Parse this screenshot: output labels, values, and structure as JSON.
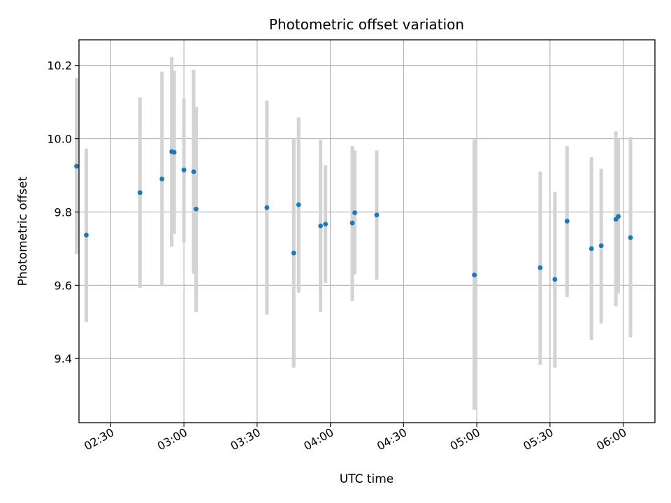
{
  "chart_data": {
    "type": "scatter",
    "title": "Photometric offset variation",
    "xlabel": "UTC time",
    "ylabel": "Photometric offset",
    "x_unit": "UTC time (HH:MM)",
    "xlim": [
      "02:17",
      "06:13"
    ],
    "ylim": [
      9.225,
      10.27
    ],
    "x_ticks": [
      "02:30",
      "03:00",
      "03:30",
      "04:00",
      "04:30",
      "05:00",
      "05:30",
      "06:00"
    ],
    "y_ticks": [
      9.4,
      9.6,
      9.8,
      10.0,
      10.2
    ],
    "y_tick_labels": [
      "9.4",
      "9.6",
      "9.8",
      "10.0",
      "10.2"
    ],
    "grid": true,
    "colors": {
      "point": "#1f77b4",
      "errorbar": "#d3d3d3",
      "grid": "#b0b0b0"
    },
    "points": [
      {
        "x": "02:16",
        "y": 9.925,
        "err_low": 9.685,
        "err_high": 10.165
      },
      {
        "x": "02:20",
        "y": 9.737,
        "err_low": 9.5,
        "err_high": 9.973
      },
      {
        "x": "02:42",
        "y": 9.853,
        "err_low": 9.593,
        "err_high": 10.113
      },
      {
        "x": "02:51",
        "y": 9.89,
        "err_low": 9.597,
        "err_high": 10.183
      },
      {
        "x": "02:55",
        "y": 9.965,
        "err_low": 9.705,
        "err_high": 10.223
      },
      {
        "x": "02:56",
        "y": 9.963,
        "err_low": 9.74,
        "err_high": 10.186
      },
      {
        "x": "03:00",
        "y": 9.915,
        "err_low": 9.718,
        "err_high": 10.11
      },
      {
        "x": "03:04",
        "y": 9.91,
        "err_low": 9.632,
        "err_high": 10.188
      },
      {
        "x": "03:05",
        "y": 9.808,
        "err_low": 9.527,
        "err_high": 10.087
      },
      {
        "x": "03:34",
        "y": 9.812,
        "err_low": 9.52,
        "err_high": 10.104
      },
      {
        "x": "03:45",
        "y": 9.688,
        "err_low": 9.375,
        "err_high": 10.0
      },
      {
        "x": "03:47",
        "y": 9.82,
        "err_low": 9.58,
        "err_high": 10.058
      },
      {
        "x": "03:56",
        "y": 9.762,
        "err_low": 9.527,
        "err_high": 9.997
      },
      {
        "x": "03:58",
        "y": 9.767,
        "err_low": 9.606,
        "err_high": 9.928
      },
      {
        "x": "04:09",
        "y": 9.77,
        "err_low": 9.557,
        "err_high": 9.98
      },
      {
        "x": "04:10",
        "y": 9.798,
        "err_low": 9.63,
        "err_high": 9.968
      },
      {
        "x": "04:19",
        "y": 9.792,
        "err_low": 9.615,
        "err_high": 9.968
      },
      {
        "x": "04:59",
        "y": 9.628,
        "err_low": 9.26,
        "err_high": 9.998
      },
      {
        "x": "05:26",
        "y": 9.648,
        "err_low": 9.383,
        "err_high": 9.91
      },
      {
        "x": "05:32",
        "y": 9.616,
        "err_low": 9.375,
        "err_high": 9.855
      },
      {
        "x": "05:37",
        "y": 9.775,
        "err_low": 9.568,
        "err_high": 9.98
      },
      {
        "x": "05:47",
        "y": 9.7,
        "err_low": 9.45,
        "err_high": 9.95
      },
      {
        "x": "05:51",
        "y": 9.708,
        "err_low": 9.495,
        "err_high": 9.918
      },
      {
        "x": "05:57",
        "y": 9.78,
        "err_low": 9.543,
        "err_high": 10.02
      },
      {
        "x": "05:58",
        "y": 9.788,
        "err_low": 9.578,
        "err_high": 10.0
      },
      {
        "x": "06:03",
        "y": 9.73,
        "err_low": 9.458,
        "err_high": 10.005
      }
    ]
  }
}
